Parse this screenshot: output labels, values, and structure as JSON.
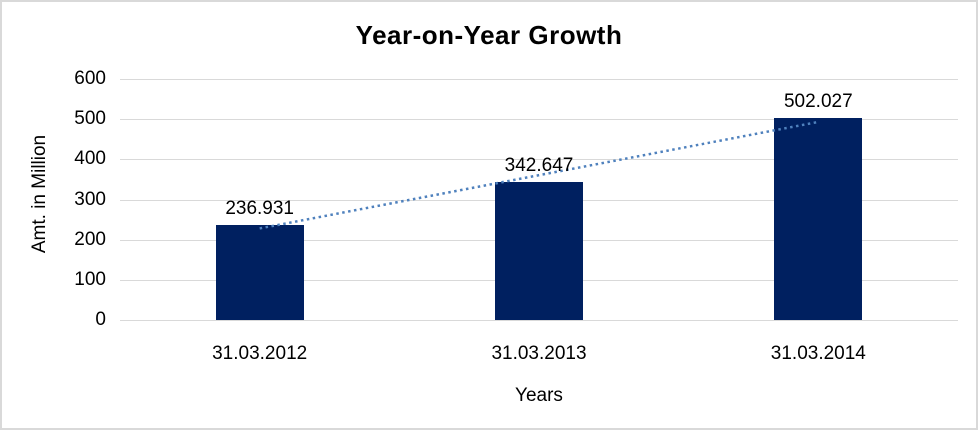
{
  "chart_data": {
    "type": "bar",
    "title": "Year-on-Year Growth",
    "xlabel": "Years",
    "ylabel": "Amt. in Million",
    "categories": [
      "31.03.2012",
      "31.03.2013",
      "31.03.2014"
    ],
    "values": [
      236.931,
      342.647,
      502.027
    ],
    "data_labels": [
      "236.931",
      "342.647",
      "502.027"
    ],
    "yticks": [
      0,
      100,
      200,
      300,
      400,
      500,
      600
    ],
    "ylim": [
      0,
      600
    ],
    "grid": true,
    "legend": "none",
    "trendline": {
      "type": "linear",
      "style": "dotted"
    },
    "colors": {
      "bar": "#002060",
      "trendline": "#4F81BD",
      "gridline": "#d9d9d9",
      "text": "#000000",
      "border": "#d9d9d9"
    }
  }
}
